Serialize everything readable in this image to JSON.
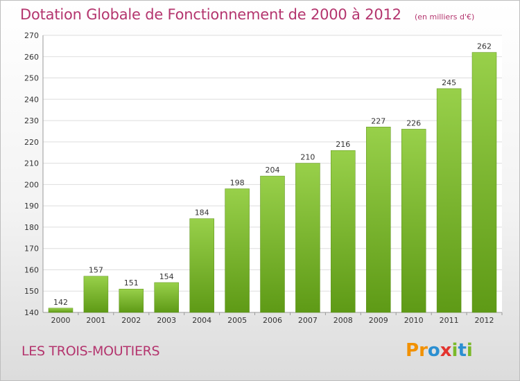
{
  "chart_data": {
    "type": "bar",
    "title": "Dotation Globale de Fonctionnement de 2000 à 2012",
    "unit": "(en milliers d'€)",
    "categories": [
      "2000",
      "2001",
      "2002",
      "2003",
      "2004",
      "2005",
      "2006",
      "2007",
      "2008",
      "2009",
      "2010",
      "2011",
      "2012"
    ],
    "values": [
      142,
      157,
      151,
      154,
      184,
      198,
      204,
      210,
      216,
      227,
      226,
      245,
      262
    ],
    "ylim": [
      140,
      270
    ],
    "yticks": [
      140,
      150,
      160,
      170,
      180,
      190,
      200,
      210,
      220,
      230,
      240,
      250,
      260,
      270
    ],
    "grid": true,
    "bar_color_top": "#98d04a",
    "bar_color_bottom": "#5e9a16"
  },
  "commune": "LES TROIS-MOUTIERS",
  "logo": {
    "letters": [
      "P",
      "r",
      "o",
      "x",
      "i",
      "t",
      "i"
    ],
    "colors": [
      "#f29100",
      "#f29100",
      "#2b8fd1",
      "#e3342f",
      "#7ab929",
      "#2b8fd1",
      "#7ab929"
    ]
  }
}
